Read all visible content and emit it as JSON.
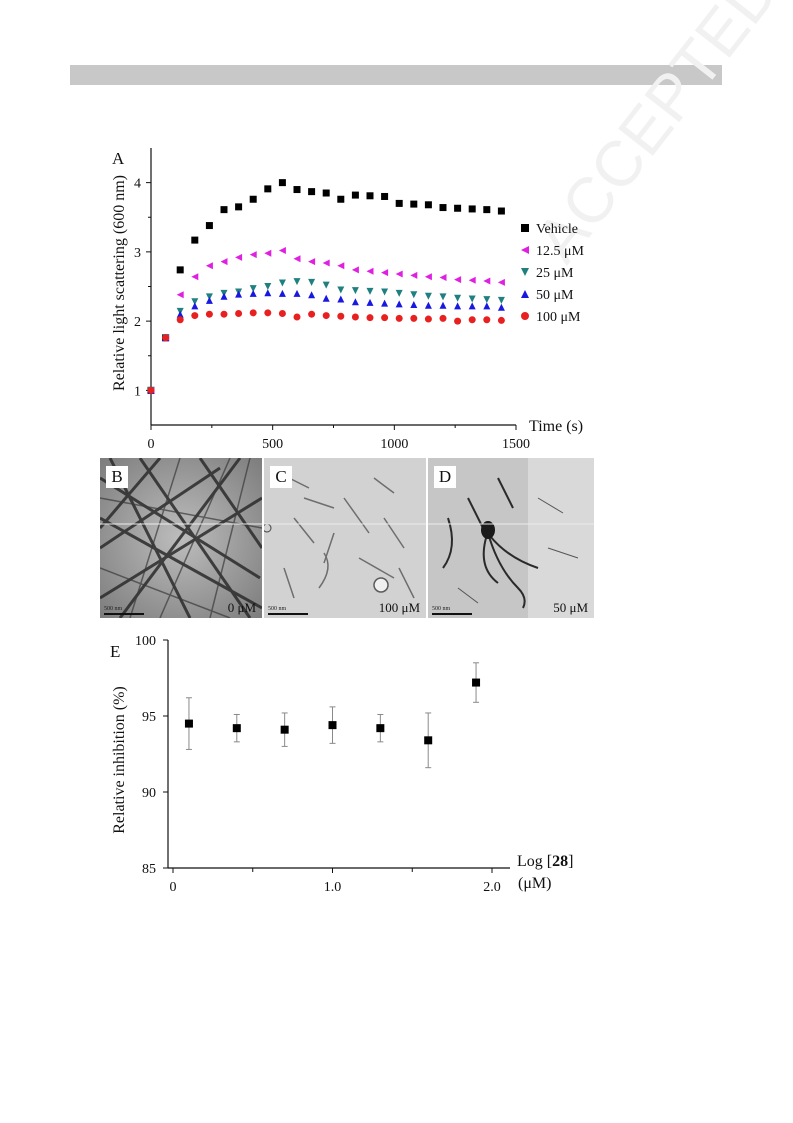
{
  "figure": {
    "panel_labels": {
      "A": "A",
      "B": "B",
      "C": "C",
      "D": "D",
      "E": "E"
    },
    "micrographs": [
      {
        "label": "B",
        "concentration": "0 μM",
        "scale": "500 nm"
      },
      {
        "label": "C",
        "concentration": "100 μM",
        "scale": "500 nm"
      },
      {
        "label": "D",
        "concentration": "50 μM",
        "scale": "500 nm"
      }
    ]
  },
  "chart_data": [
    {
      "type": "scatter",
      "ylabel": "Relative light scattering (600 nm)",
      "xlabel": "Time (s)",
      "xlim": [
        0,
        1500
      ],
      "ylim": [
        0.5,
        4.5
      ],
      "xticks": [
        "0",
        "500",
        "1000",
        "1500"
      ],
      "yticks": [
        "1",
        "2",
        "3",
        "4"
      ],
      "legend_position": "right",
      "x": [
        0,
        60,
        120,
        180,
        240,
        300,
        360,
        420,
        480,
        540,
        600,
        660,
        720,
        780,
        840,
        900,
        960,
        1020,
        1080,
        1140,
        1200,
        1260,
        1320,
        1380,
        1440
      ],
      "series": [
        {
          "name": "Vehicle",
          "marker": "square",
          "color": "#000000",
          "values": [
            1.0,
            1.76,
            2.74,
            3.17,
            3.38,
            3.61,
            3.65,
            3.76,
            3.91,
            4.0,
            3.9,
            3.87,
            3.85,
            3.76,
            3.82,
            3.81,
            3.8,
            3.7,
            3.69,
            3.68,
            3.64,
            3.63,
            3.62,
            3.61,
            3.59
          ]
        },
        {
          "name": "12.5 μM",
          "marker": "triangle-left",
          "color": "#e020e0",
          "values": [
            1.0,
            1.76,
            2.38,
            2.64,
            2.8,
            2.86,
            2.92,
            2.96,
            2.98,
            3.02,
            2.9,
            2.86,
            2.84,
            2.8,
            2.74,
            2.72,
            2.7,
            2.68,
            2.66,
            2.64,
            2.63,
            2.6,
            2.59,
            2.58,
            2.56
          ]
        },
        {
          "name": "25 μM",
          "marker": "triangle-down",
          "color": "#208080",
          "values": [
            1.0,
            1.76,
            2.14,
            2.28,
            2.35,
            2.4,
            2.42,
            2.47,
            2.5,
            2.55,
            2.57,
            2.56,
            2.52,
            2.45,
            2.44,
            2.43,
            2.42,
            2.4,
            2.38,
            2.36,
            2.35,
            2.33,
            2.32,
            2.31,
            2.3
          ]
        },
        {
          "name": "50 μM",
          "marker": "triangle-up",
          "color": "#1818e0",
          "values": [
            1.0,
            1.76,
            2.1,
            2.22,
            2.3,
            2.36,
            2.39,
            2.4,
            2.41,
            2.4,
            2.4,
            2.38,
            2.33,
            2.32,
            2.28,
            2.27,
            2.26,
            2.25,
            2.24,
            2.23,
            2.23,
            2.22,
            2.22,
            2.22,
            2.2
          ]
        },
        {
          "name": "100 μM",
          "marker": "circle",
          "color": "#e82020",
          "values": [
            1.0,
            1.76,
            2.02,
            2.08,
            2.1,
            2.1,
            2.11,
            2.12,
            2.12,
            2.11,
            2.06,
            2.1,
            2.08,
            2.07,
            2.06,
            2.05,
            2.05,
            2.04,
            2.04,
            2.03,
            2.04,
            2.0,
            2.02,
            2.02,
            2.01
          ]
        }
      ]
    },
    {
      "type": "scatter",
      "ylabel": "Relative inhibition (%)",
      "xlabel_prefix": "Log [",
      "xlabel_bold": "28",
      "xlabel_suffix": "]",
      "xlabel_unit": "(μM)",
      "xlim": [
        0,
        2.0
      ],
      "ylim": [
        85,
        100
      ],
      "xticks": [
        "0",
        "1.0",
        "2.0"
      ],
      "yticks": [
        "85",
        "90",
        "95",
        "100"
      ],
      "x": [
        0.1,
        0.4,
        0.7,
        1.0,
        1.3,
        1.6,
        1.9
      ],
      "y": [
        94.5,
        94.2,
        94.1,
        94.4,
        94.2,
        93.4,
        97.2
      ],
      "error": [
        1.7,
        0.9,
        1.1,
        1.2,
        0.9,
        1.8,
        1.3
      ]
    }
  ]
}
